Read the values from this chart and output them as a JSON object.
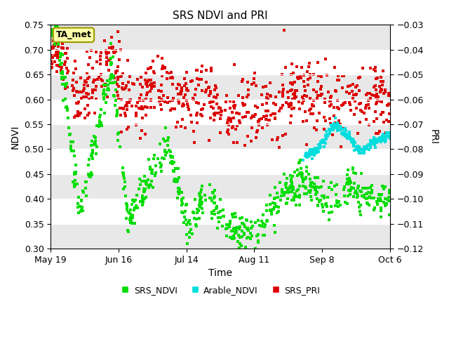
{
  "title": "SRS NDVI and PRI",
  "xlabel": "Time",
  "ylabel_left": "NDVI",
  "ylabel_right": "PRI",
  "annotation_text": "TA_met",
  "ylim_left": [
    0.3,
    0.75
  ],
  "ylim_right": [
    -0.12,
    -0.03
  ],
  "yticks_left": [
    0.3,
    0.35,
    0.4,
    0.45,
    0.5,
    0.55,
    0.6,
    0.65,
    0.7,
    0.75
  ],
  "yticks_right": [
    -0.12,
    -0.11,
    -0.1,
    -0.09,
    -0.08,
    -0.07,
    -0.06,
    -0.05,
    -0.04,
    -0.03
  ],
  "xtick_labels": [
    "May 19",
    "Jun 16",
    "Jul 14",
    "Aug 11",
    "Sep 8",
    "Oct 6"
  ],
  "srs_ndvi_color": "#00dd00",
  "arable_ndvi_color": "#00dddd",
  "srs_pri_color": "#dd0000",
  "background_color": "#ffffff",
  "plot_bg_color": "#ffffff",
  "grid_color": "#d8d8d8",
  "marker_size": 9,
  "seed": 42
}
